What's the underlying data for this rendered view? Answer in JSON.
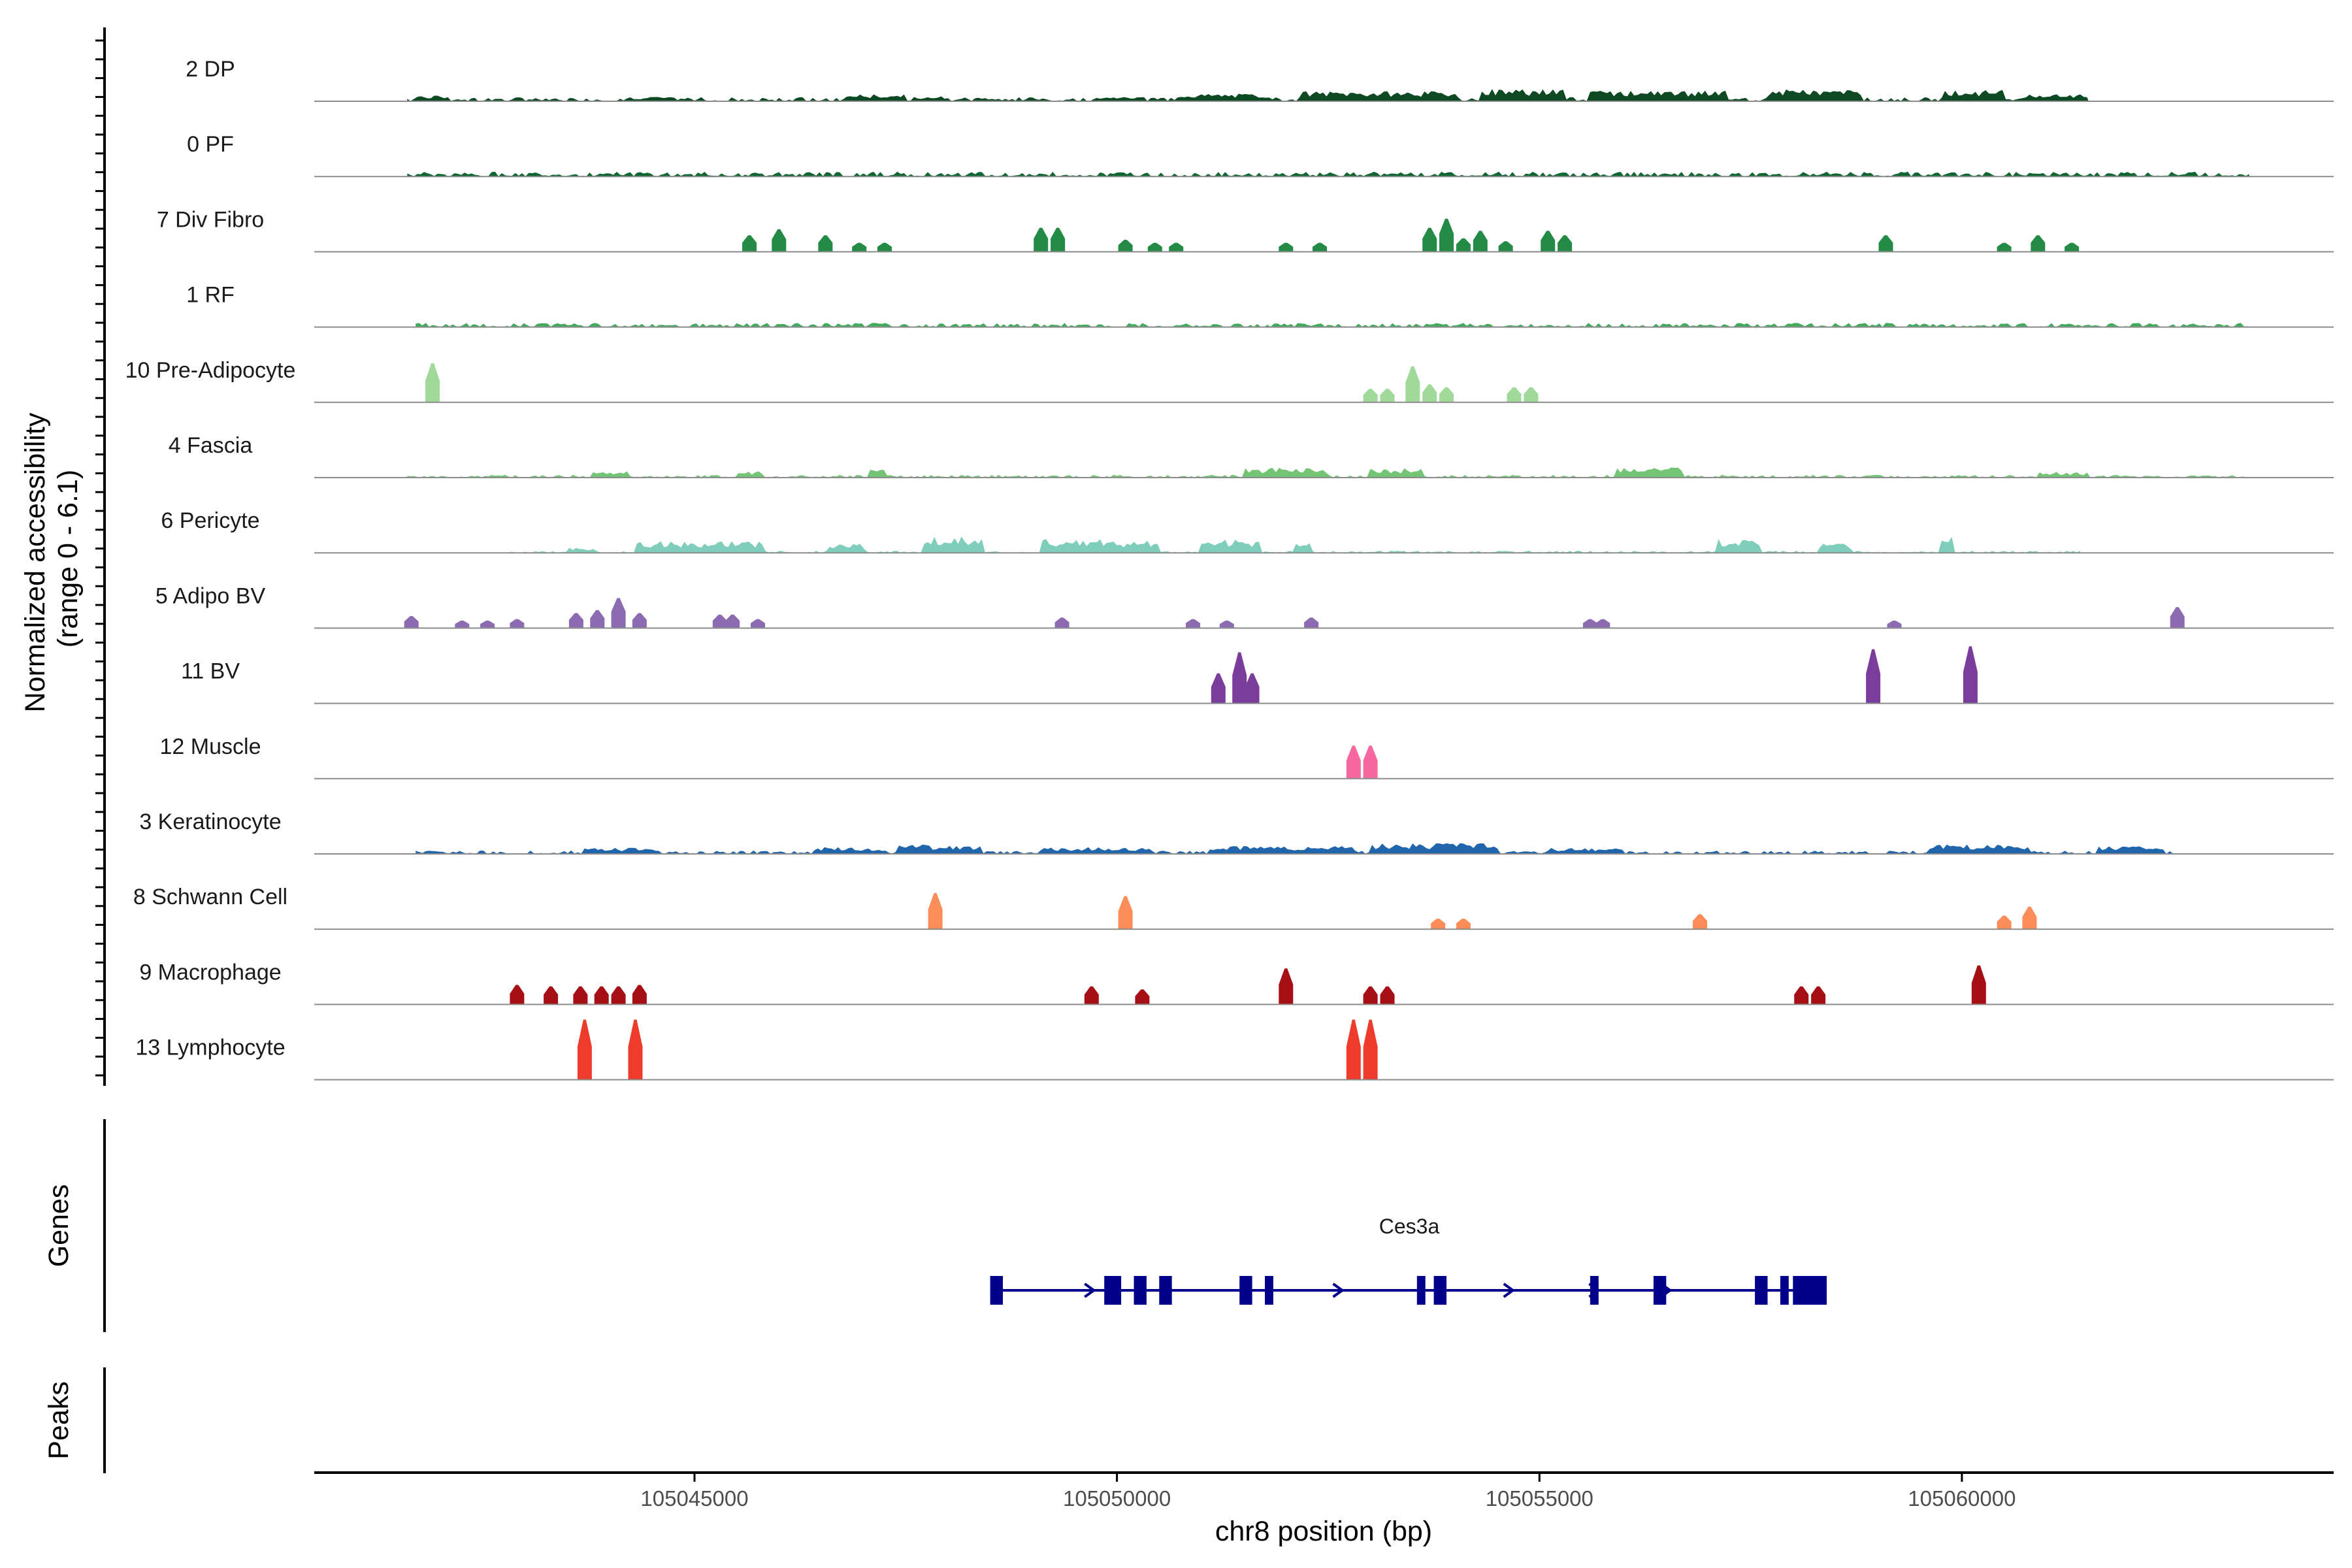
{
  "chart_data": {
    "type": "coverage",
    "chromosome": "chr8",
    "xlim": [
      105040500,
      105064400
    ],
    "xlabel": "chr8 position (bp)",
    "ylabel_line1": "Normalized accessibility",
    "ylabel_line2": "(range 0 - 6.1)",
    "y_range": [
      0,
      6.1
    ],
    "x_ticks": [
      105045000,
      105050000,
      105055000,
      105060000
    ],
    "x_tick_labels": [
      "105045000",
      "105050000",
      "105055000",
      "105060000"
    ],
    "genes_panel_label": "Genes",
    "peaks_panel_label": "Peaks",
    "tracks": [
      {
        "name": "2 DP",
        "color": "#0d4a24",
        "style": "dense",
        "region": [
          105041600,
          105061500
        ],
        "level": 0.12,
        "segments": [
          [
            105041700,
            105042100,
            0.18
          ],
          [
            105044200,
            105044600,
            0.14
          ],
          [
            105046800,
            105047500,
            0.22
          ],
          [
            105047600,
            105048000,
            0.16
          ],
          [
            105048300,
            105048600,
            0.12
          ],
          [
            105049700,
            105050300,
            0.14
          ],
          [
            105050700,
            105051800,
            0.24
          ],
          [
            105052200,
            105054000,
            0.32
          ],
          [
            105054300,
            105055300,
            0.4
          ],
          [
            105055600,
            105057200,
            0.34
          ],
          [
            105057700,
            105058800,
            0.38
          ],
          [
            105059800,
            105060500,
            0.36
          ],
          [
            105060700,
            105061500,
            0.22
          ]
        ]
      },
      {
        "name": "0 PF",
        "color": "#0d6630",
        "style": "dense",
        "region": [
          105041600,
          105063400
        ],
        "level": 0.14,
        "segments": []
      },
      {
        "name": "7 Div Fibro",
        "color": "#238b45",
        "style": "peaks",
        "peaks": [
          [
            105045650,
            0.55
          ],
          [
            105046000,
            0.75
          ],
          [
            105046550,
            0.55
          ],
          [
            105046950,
            0.3
          ],
          [
            105047250,
            0.3
          ],
          [
            105049100,
            0.8
          ],
          [
            105049300,
            0.8
          ],
          [
            105050100,
            0.4
          ],
          [
            105050450,
            0.3
          ],
          [
            105050700,
            0.3
          ],
          [
            105052000,
            0.3
          ],
          [
            105052400,
            0.3
          ],
          [
            105053700,
            0.8
          ],
          [
            105053900,
            1.1
          ],
          [
            105054100,
            0.45
          ],
          [
            105054300,
            0.7
          ],
          [
            105054600,
            0.35
          ],
          [
            105055100,
            0.7
          ],
          [
            105055300,
            0.55
          ],
          [
            105059100,
            0.55
          ],
          [
            105060500,
            0.3
          ],
          [
            105060900,
            0.55
          ],
          [
            105061300,
            0.3
          ]
        ]
      },
      {
        "name": "1 RF",
        "color": "#41ab5d",
        "style": "dense",
        "region": [
          105041700,
          105063400
        ],
        "level": 0.12,
        "segments": []
      },
      {
        "name": "10 Pre-Adipocyte",
        "color": "#a1d99b",
        "style": "peaks",
        "peaks": [
          [
            105041900,
            1.3
          ],
          [
            105053000,
            0.45
          ],
          [
            105053200,
            0.45
          ],
          [
            105053500,
            1.2
          ],
          [
            105053700,
            0.6
          ],
          [
            105053900,
            0.5
          ],
          [
            105054700,
            0.5
          ],
          [
            105054900,
            0.5
          ]
        ]
      },
      {
        "name": "4 Fascia",
        "color": "#74c476",
        "style": "dense",
        "region": [
          105041600,
          105063400
        ],
        "level": 0.08,
        "segments": [
          [
            105043800,
            105044200,
            0.2
          ],
          [
            105045500,
            105045800,
            0.22
          ],
          [
            105047050,
            105047250,
            0.32
          ],
          [
            105051500,
            105052500,
            0.32
          ],
          [
            105053000,
            105053600,
            0.3
          ],
          [
            105055900,
            105056700,
            0.34
          ],
          [
            105060900,
            105061500,
            0.18
          ]
        ]
      },
      {
        "name": "6 Pericyte",
        "color": "#7fcdbb",
        "style": "dense",
        "region": [
          105042800,
          105061400
        ],
        "level": 0.06,
        "segments": [
          [
            105043500,
            105043800,
            0.16
          ],
          [
            105044300,
            105045800,
            0.38
          ],
          [
            105046600,
            105047000,
            0.3
          ],
          [
            105047700,
            105048400,
            0.55
          ],
          [
            105049100,
            105050000,
            0.45
          ],
          [
            105050000,
            105050500,
            0.4
          ],
          [
            105051000,
            105051700,
            0.42
          ],
          [
            105052100,
            105052300,
            0.4
          ],
          [
            105057100,
            105057600,
            0.45
          ],
          [
            105058300,
            105058700,
            0.3
          ],
          [
            105059750,
            105059900,
            0.6
          ]
        ]
      },
      {
        "name": "5 Adipo BV",
        "color": "#8c6bb1",
        "style": "peaks",
        "peaks": [
          [
            105041650,
            0.4
          ],
          [
            105042250,
            0.25
          ],
          [
            105042550,
            0.25
          ],
          [
            105042900,
            0.3
          ],
          [
            105043600,
            0.5
          ],
          [
            105043850,
            0.6
          ],
          [
            105044100,
            1.0
          ],
          [
            105044350,
            0.5
          ],
          [
            105045300,
            0.45
          ],
          [
            105045450,
            0.45
          ],
          [
            105045750,
            0.3
          ],
          [
            105049350,
            0.35
          ],
          [
            105050900,
            0.3
          ],
          [
            105051300,
            0.25
          ],
          [
            105052300,
            0.35
          ],
          [
            105055600,
            0.3
          ],
          [
            105055750,
            0.3
          ],
          [
            105059200,
            0.25
          ],
          [
            105062550,
            0.7
          ]
        ]
      },
      {
        "name": "11 BV",
        "color": "#7a3d9c",
        "style": "peaks",
        "peaks": [
          [
            105051200,
            1.0
          ],
          [
            105051450,
            1.7
          ],
          [
            105051600,
            1.0
          ],
          [
            105058950,
            1.8
          ],
          [
            105060100,
            1.9
          ]
        ]
      },
      {
        "name": "12 Muscle",
        "color": "#f768a1",
        "style": "peaks",
        "peaks": [
          [
            105052800,
            1.1
          ],
          [
            105053000,
            1.1
          ]
        ]
      },
      {
        "name": "3 Keratinocyte",
        "color": "#2166ac",
        "style": "dense",
        "region": [
          105041700,
          105062500
        ],
        "level": 0.1,
        "segments": [
          [
            105043700,
            105044500,
            0.2
          ],
          [
            105046400,
            105047200,
            0.22
          ],
          [
            105047400,
            105048400,
            0.3
          ],
          [
            105049100,
            105050400,
            0.22
          ],
          [
            105051100,
            105052800,
            0.25
          ],
          [
            105053000,
            105054500,
            0.34
          ],
          [
            105055100,
            105056000,
            0.2
          ],
          [
            105059600,
            105060800,
            0.3
          ],
          [
            105061600,
            105062400,
            0.24
          ]
        ]
      },
      {
        "name": "8 Schwann Cell",
        "color": "#fc8d59",
        "style": "peaks",
        "peaks": [
          [
            105047850,
            1.2
          ],
          [
            105050100,
            1.1
          ],
          [
            105053800,
            0.35
          ],
          [
            105054100,
            0.35
          ],
          [
            105056900,
            0.5
          ],
          [
            105060500,
            0.45
          ],
          [
            105060800,
            0.75
          ]
        ]
      },
      {
        "name": "9 Macrophage",
        "color": "#a50f15",
        "style": "peaks",
        "peaks": [
          [
            105042900,
            0.65
          ],
          [
            105043300,
            0.6
          ],
          [
            105043650,
            0.6
          ],
          [
            105043900,
            0.6
          ],
          [
            105044100,
            0.6
          ],
          [
            105044350,
            0.65
          ],
          [
            105049700,
            0.6
          ],
          [
            105050300,
            0.5
          ],
          [
            105052000,
            1.2
          ],
          [
            105053000,
            0.6
          ],
          [
            105053200,
            0.6
          ],
          [
            105058100,
            0.6
          ],
          [
            105058300,
            0.6
          ],
          [
            105060200,
            1.3
          ]
        ]
      },
      {
        "name": "13 Lymphocyte",
        "color": "#ef3b2c",
        "style": "peaks",
        "peaks": [
          [
            105043700,
            2.0
          ],
          [
            105044300,
            2.0
          ],
          [
            105052800,
            2.0
          ],
          [
            105053000,
            2.0
          ]
        ]
      }
    ],
    "gene": {
      "name": "Ces3a",
      "color": "#00008b",
      "start": 105048500,
      "end": 105058400,
      "strand": "+",
      "exons": [
        [
          105048500,
          105048650
        ],
        [
          105049850,
          105050050
        ],
        [
          105050200,
          105050350
        ],
        [
          105050500,
          105050650
        ],
        [
          105051450,
          105051600
        ],
        [
          105051750,
          105051850
        ],
        [
          105053550,
          105053650
        ],
        [
          105053750,
          105053900
        ],
        [
          105055600,
          105055700
        ],
        [
          105056350,
          105056500
        ],
        [
          105057550,
          105057700
        ],
        [
          105057850,
          105057950
        ],
        [
          105058000,
          105058400
        ]
      ],
      "arrows": [
        105048570,
        105049680,
        105052620,
        105054640,
        105055650,
        105056500
      ]
    }
  }
}
